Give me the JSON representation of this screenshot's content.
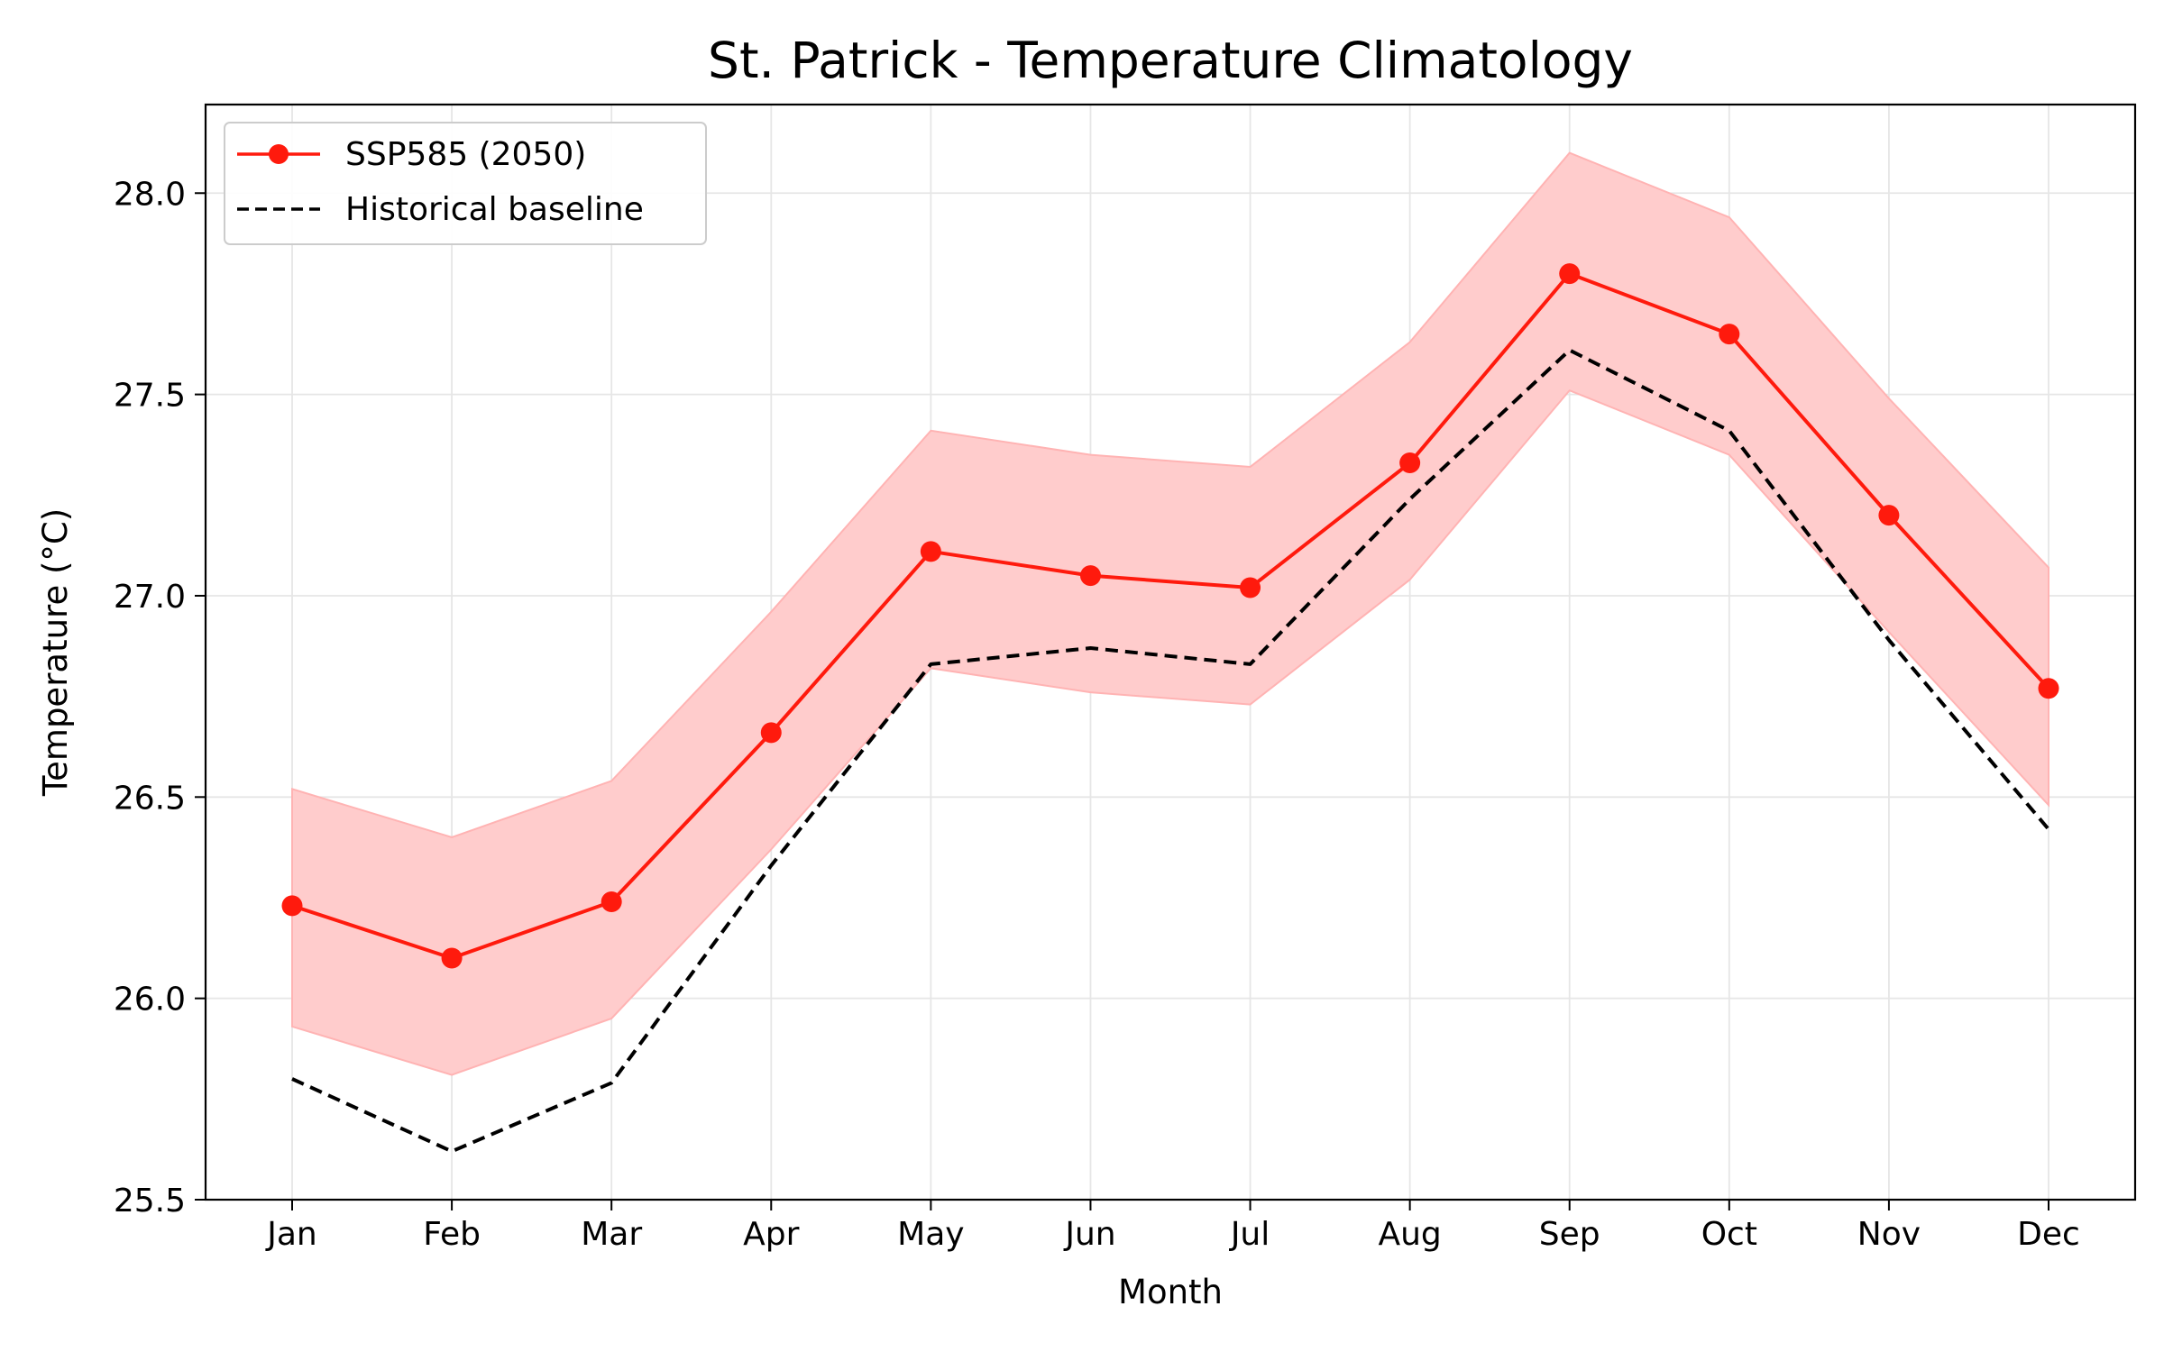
{
  "chart_data": {
    "type": "line",
    "title": "St. Patrick - Temperature Climatology",
    "xlabel": "Month",
    "ylabel": "Temperature (°C)",
    "categories": [
      "Jan",
      "Feb",
      "Mar",
      "Apr",
      "May",
      "Jun",
      "Jul",
      "Aug",
      "Sep",
      "Oct",
      "Nov",
      "Dec"
    ],
    "ylim": [
      25.5,
      28.22
    ],
    "yticks": [
      25.5,
      26.0,
      26.5,
      27.0,
      27.5,
      28.0
    ],
    "ytick_labels": [
      "25.5",
      "26.0",
      "26.5",
      "27.0",
      "27.5",
      "28.0"
    ],
    "grid": true,
    "legend_position": "top-left",
    "series": [
      {
        "name": "SSP585 (2050)",
        "style": "solid-with-markers",
        "color": "#ff1a0d",
        "values": [
          26.23,
          26.1,
          26.24,
          26.66,
          27.11,
          27.05,
          27.02,
          27.33,
          27.8,
          27.65,
          27.2,
          26.77
        ],
        "band_low": [
          25.93,
          25.81,
          25.95,
          26.37,
          26.82,
          26.76,
          26.73,
          27.04,
          27.51,
          27.35,
          26.91,
          26.48
        ],
        "band_high": [
          26.52,
          26.4,
          26.54,
          26.96,
          27.41,
          27.35,
          27.32,
          27.63,
          28.1,
          27.94,
          27.49,
          27.07
        ],
        "band_color": "#ffcccc",
        "band_edge_color": "#ffb3b3"
      },
      {
        "name": "Historical baseline",
        "style": "dashed",
        "color": "#000000",
        "values": [
          25.8,
          25.62,
          25.79,
          26.33,
          26.83,
          26.87,
          26.83,
          27.24,
          27.61,
          27.41,
          26.89,
          26.42
        ]
      }
    ]
  }
}
